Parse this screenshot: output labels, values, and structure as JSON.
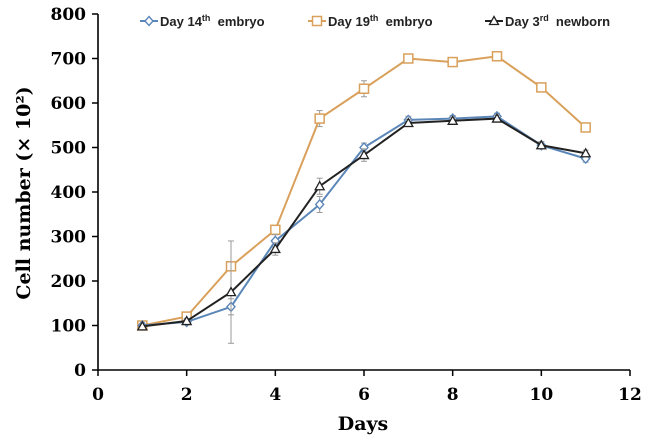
{
  "chart_data": {
    "type": "line",
    "title": "",
    "xlabel": "Days",
    "ylabel": "Cell number (× 10²)",
    "xlim": [
      0,
      12
    ],
    "ylim": [
      0,
      800
    ],
    "xticks": [
      0,
      2,
      4,
      6,
      8,
      10,
      12
    ],
    "yticks": [
      0,
      100,
      200,
      300,
      400,
      500,
      600,
      700,
      800
    ],
    "grid": false,
    "legend_position": "top",
    "x": [
      1,
      2,
      3,
      4,
      5,
      6,
      7,
      8,
      9,
      10,
      11
    ],
    "series": [
      {
        "name": "Day 14th embryo",
        "name_prefix": "Day 14",
        "name_sup": "th",
        "name_suffix": "embryo",
        "color": "#5b86b8",
        "marker": "diamond",
        "values": [
          100,
          108,
          142,
          290,
          372,
          500,
          562,
          565,
          570,
          505,
          475
        ],
        "errors": [
          5,
          6,
          18,
          14,
          18,
          10,
          8,
          7,
          7,
          8,
          8
        ]
      },
      {
        "name": "Day 19th embryo",
        "name_prefix": "Day 19",
        "name_sup": "th",
        "name_suffix": "embryo",
        "color": "#d9a05b",
        "marker": "square",
        "values": [
          100,
          120,
          233,
          315,
          565,
          632,
          700,
          692,
          705,
          635,
          545
        ],
        "errors": [
          5,
          8,
          8,
          8,
          18,
          18,
          7,
          6,
          7,
          7,
          6
        ]
      },
      {
        "name": "Day 3rd newborn",
        "name_prefix": "Day 3",
        "name_sup": "rd",
        "name_suffix": "newborn",
        "color": "#222222",
        "marker": "triangle",
        "values": [
          98,
          110,
          175,
          272,
          413,
          483,
          555,
          560,
          565,
          505,
          487
        ],
        "errors": [
          5,
          6,
          115,
          14,
          18,
          14,
          8,
          7,
          7,
          8,
          7
        ]
      }
    ]
  }
}
